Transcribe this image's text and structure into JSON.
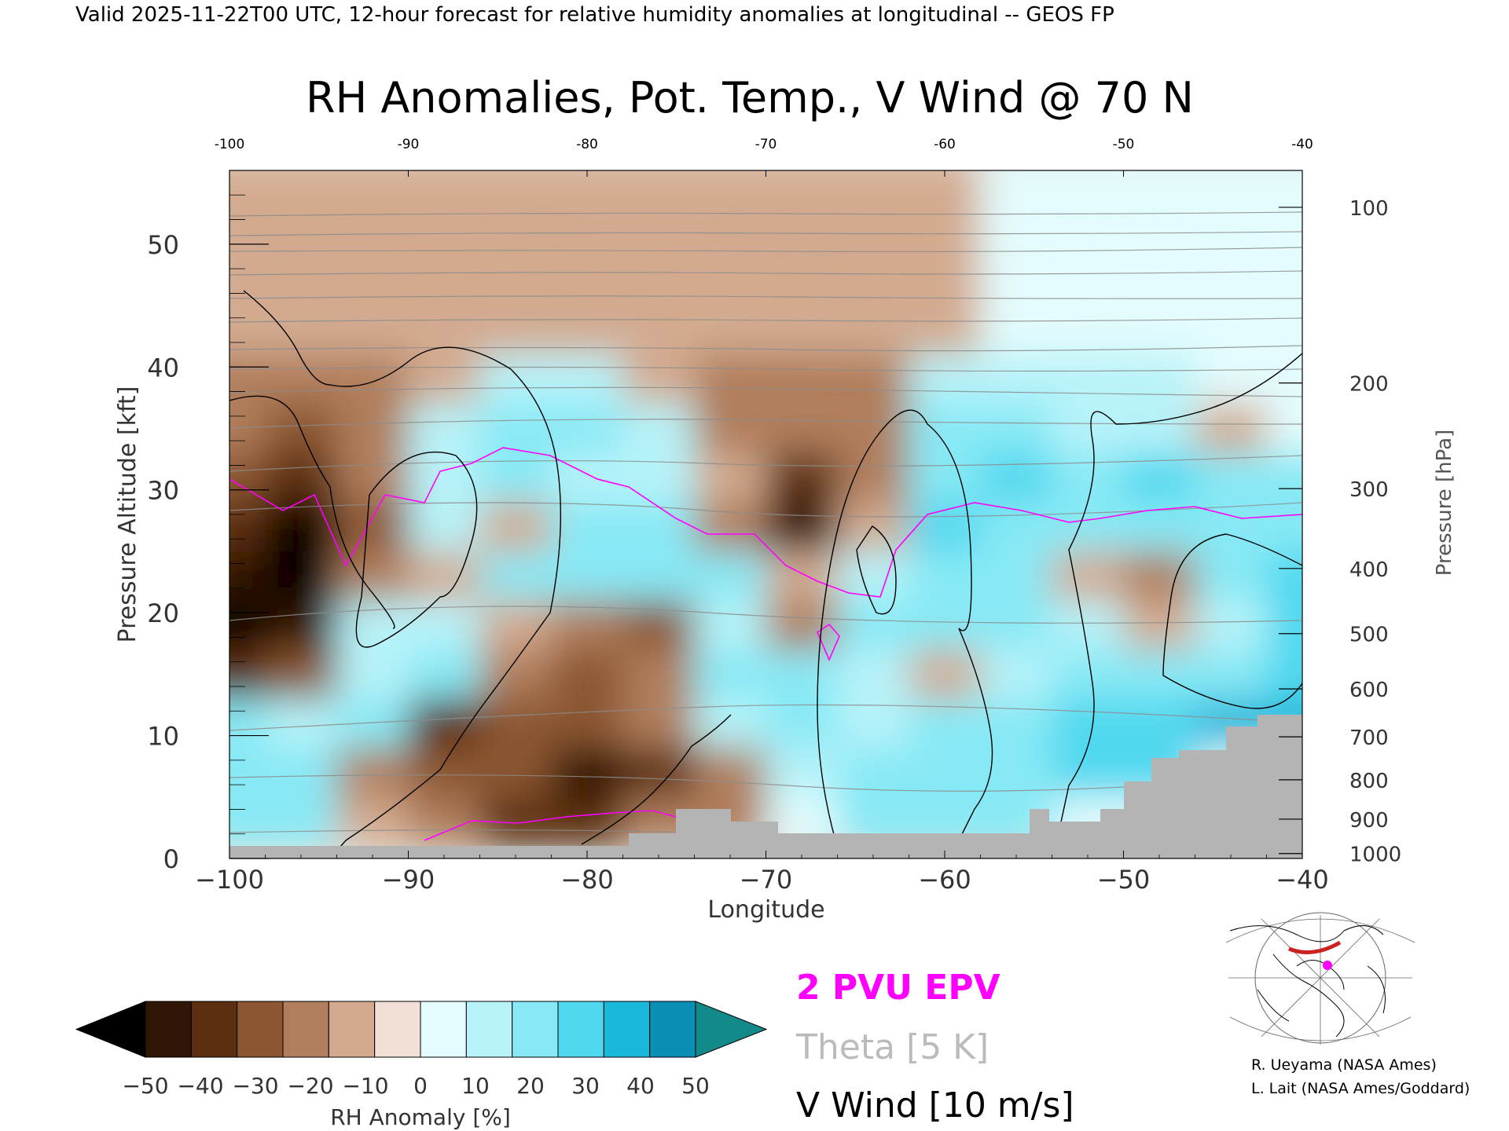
{
  "header": "Valid 2025-11-22T00 UTC, 12-hour forecast for relative humidity anomalies at longitudinal -- GEOS FP",
  "chart_data": {
    "type": "heatmap",
    "title": "RH Anomalies, Pot. Temp., V Wind @ 70 N",
    "xlabel": "Longitude",
    "ylabel": "Pressure Altitude [kft]",
    "y2label": "Pressure [hPa]",
    "xlim": [
      -100,
      -40
    ],
    "ylim": [
      0,
      56
    ],
    "x_ticks": [
      -100,
      -90,
      -80,
      -70,
      -60,
      -50,
      -40
    ],
    "x_tick_labels": [
      "−100",
      "−90",
      "−80",
      "−70",
      "−60",
      "−50",
      "−40"
    ],
    "top_x_tick_labels": [
      "-100",
      "-90",
      "-80",
      "-70",
      "-60",
      "-50",
      "-40"
    ],
    "y_ticks": [
      0,
      10,
      20,
      30,
      40,
      50
    ],
    "pressure_ticks": [
      {
        "hPa": "100",
        "kft": 53
      },
      {
        "hPa": "200",
        "kft": 38.7
      },
      {
        "hPa": "300",
        "kft": 30.1
      },
      {
        "hPa": "400",
        "kft": 23.6
      },
      {
        "hPa": "500",
        "kft": 18.3
      },
      {
        "hPa": "600",
        "kft": 13.8
      },
      {
        "hPa": "700",
        "kft": 9.9
      },
      {
        "hPa": "800",
        "kft": 6.4
      },
      {
        "hPa": "900",
        "kft": 3.2
      },
      {
        "hPa": "1000",
        "kft": 0.4
      }
    ],
    "rh_anomaly_cells": {
      "x": [
        -100,
        -96,
        -92,
        -88,
        -84,
        -80,
        -76,
        -72,
        -68,
        -64,
        -60,
        -56,
        -52,
        -48,
        -44,
        -40
      ],
      "y": [
        55,
        51,
        47,
        43,
        39,
        35,
        31,
        27,
        23,
        19,
        15,
        11,
        7,
        3
      ],
      "values": [
        [
          -3,
          -3,
          -3,
          -3,
          -3,
          -3,
          -3,
          -3,
          -2,
          -2,
          -1,
          0,
          1,
          1,
          1,
          1
        ],
        [
          -4,
          -4,
          -4,
          -4,
          -4,
          -4,
          -4,
          -4,
          -3,
          -3,
          -2,
          0,
          0,
          1,
          1,
          1
        ],
        [
          -5,
          -5,
          -5,
          -5,
          -5,
          -5,
          -5,
          -4,
          -4,
          -3,
          -2,
          0,
          0,
          1,
          1,
          1
        ],
        [
          -8,
          -8,
          -10,
          -10,
          -8,
          -7,
          -7,
          -6,
          -6,
          -5,
          -2,
          0,
          0,
          0,
          0,
          1
        ],
        [
          -12,
          -15,
          -20,
          -8,
          10,
          10,
          -10,
          -12,
          -18,
          -12,
          15,
          15,
          15,
          10,
          5,
          0
        ],
        [
          -15,
          -25,
          -20,
          15,
          20,
          20,
          12,
          -15,
          -20,
          -15,
          25,
          20,
          15,
          15,
          -5,
          5
        ],
        [
          -25,
          -40,
          -20,
          15,
          25,
          15,
          10,
          -10,
          -35,
          -20,
          25,
          35,
          25,
          30,
          20,
          20
        ],
        [
          -35,
          -55,
          -25,
          10,
          -10,
          25,
          20,
          -15,
          -45,
          -10,
          30,
          25,
          20,
          25,
          25,
          25
        ],
        [
          -50,
          -55,
          -20,
          -5,
          20,
          25,
          25,
          20,
          -10,
          15,
          25,
          20,
          -10,
          -15,
          20,
          30
        ],
        [
          -55,
          -45,
          10,
          15,
          -10,
          -20,
          -30,
          15,
          -20,
          20,
          25,
          20,
          15,
          -10,
          15,
          30
        ],
        [
          -40,
          -25,
          15,
          20,
          -15,
          -25,
          -20,
          20,
          25,
          10,
          -5,
          10,
          20,
          25,
          25,
          30
        ],
        [
          20,
          15,
          20,
          -35,
          -30,
          -25,
          -20,
          10,
          20,
          10,
          20,
          25,
          30,
          35,
          40,
          40
        ],
        [
          25,
          20,
          -15,
          -25,
          -30,
          -45,
          -35,
          -20,
          15,
          20,
          25,
          25,
          30,
          30,
          0,
          0
        ],
        [
          20,
          20,
          -10,
          -20,
          -35,
          -40,
          -20,
          -15,
          5,
          20,
          25,
          20,
          0,
          0,
          0,
          0
        ]
      ]
    },
    "theta_contours_K": [
      "270",
      "280",
      "290",
      "300",
      "310",
      "320",
      "330",
      "340",
      "350",
      "360",
      "370",
      "380",
      "390",
      "400",
      "410",
      "420"
    ],
    "colorbar": {
      "label": "RH Anomaly [%]",
      "ticks": [
        "−50",
        "−40",
        "−30",
        "−20",
        "−10",
        "0",
        "10",
        "20",
        "30",
        "40",
        "50"
      ],
      "colors": [
        "#301505",
        "#5c2e10",
        "#8b5630",
        "#b07e5c",
        "#d3aa90",
        "#f1e0d6",
        "#e3fcfd",
        "#b7f3f9",
        "#87e9f5",
        "#4fd8ef",
        "#1ab8da",
        "#0b8fb5"
      ],
      "under_color": "#000000",
      "over_color": "#138a8a"
    },
    "legend": [
      {
        "label": "2 PVU EPV",
        "color": "#ff00ff"
      },
      {
        "label": "Theta [5 K]",
        "color": "#bbbbbb"
      },
      {
        "label": "V Wind [10 m/s]",
        "color": "#000000"
      }
    ],
    "credits": [
      "R. Ueyama (NASA Ames)",
      "L. Lait (NASA Ames/Goddard)"
    ]
  }
}
